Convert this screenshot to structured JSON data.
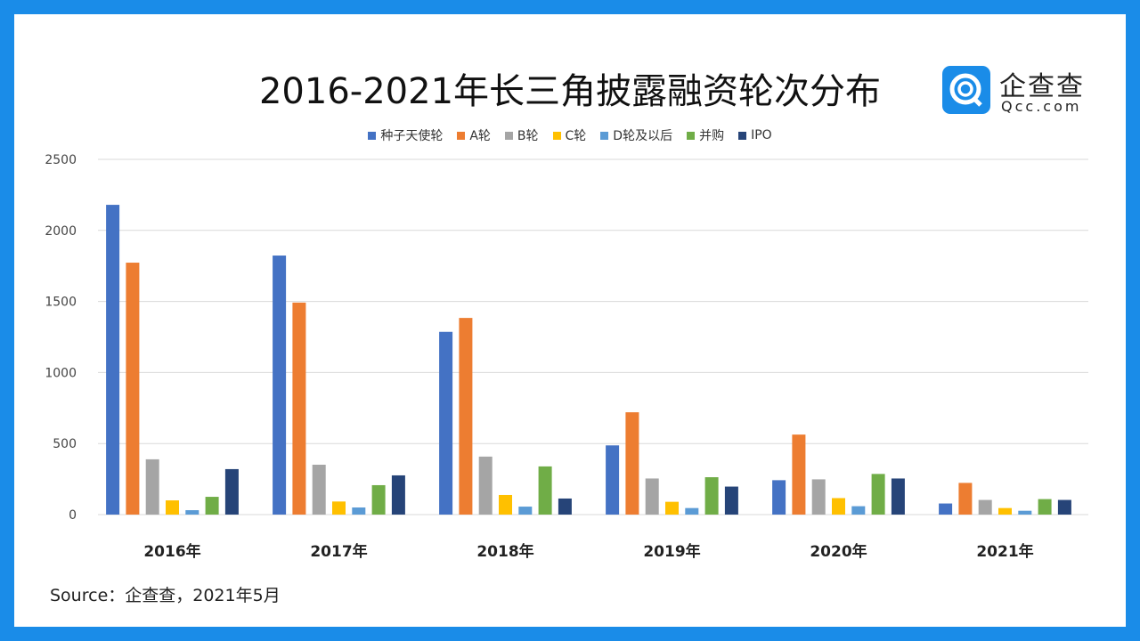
{
  "logo": {
    "cn": "企查查",
    "en": "Qcc.com"
  },
  "source": "Source：企查查，2021年5月",
  "chart_data": {
    "type": "bar",
    "title": "2016-2021年长三角披露融资轮次分布",
    "categories": [
      "2016年",
      "2017年",
      "2018年",
      "2019年",
      "2020年",
      "2021年"
    ],
    "ylim": [
      0,
      2500
    ],
    "yticks": [
      "0",
      "500",
      "1000",
      "1500",
      "2000",
      "2500"
    ],
    "ytick_values": [
      0,
      500,
      1000,
      1500,
      2000,
      2500
    ],
    "grid": true,
    "legend_position": "top-center",
    "series": [
      {
        "name": "种子天使轮",
        "color": "#4472c4",
        "values": [
          2180,
          1823,
          1286,
          487,
          242,
          78
        ]
      },
      {
        "name": "A轮",
        "color": "#ed7d31",
        "values": [
          1773,
          1492,
          1384,
          720,
          563,
          223
        ]
      },
      {
        "name": "B轮",
        "color": "#a5a5a5",
        "values": [
          389,
          351,
          408,
          254,
          248,
          103
        ]
      },
      {
        "name": "C轮",
        "color": "#ffc000",
        "values": [
          100,
          92,
          138,
          90,
          116,
          46
        ]
      },
      {
        "name": "D轮及以后",
        "color": "#5b9bd5",
        "values": [
          31,
          50,
          56,
          46,
          59,
          27
        ]
      },
      {
        "name": "并购",
        "color": "#70ad47",
        "values": [
          125,
          207,
          339,
          263,
          286,
          109
        ]
      },
      {
        "name": "IPO",
        "color": "#264478",
        "values": [
          320,
          276,
          113,
          197,
          254,
          103
        ]
      }
    ]
  }
}
